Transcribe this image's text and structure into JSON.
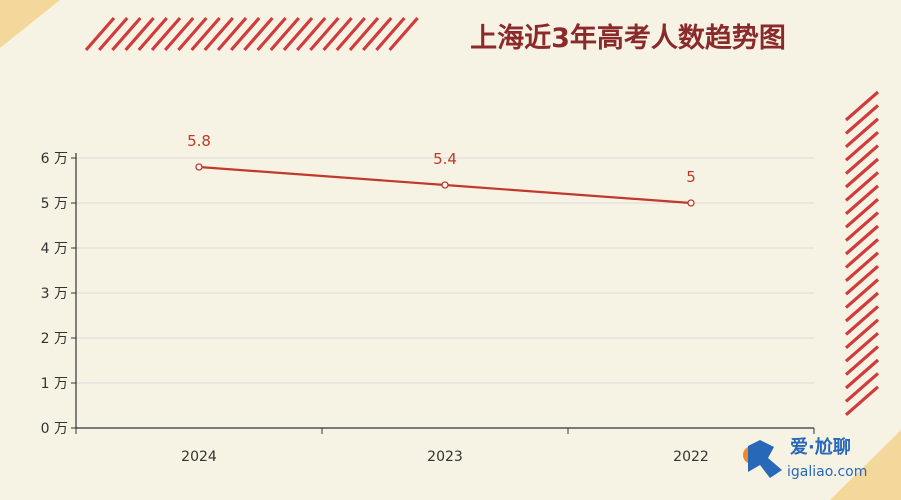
{
  "colors": {
    "background": "#f7f3e4",
    "accent": "#d23b3b",
    "series": "#c0392b",
    "title": "#8b2a2a",
    "corner": "#f4d79a",
    "grid": "#d9d9d9",
    "watermark_blue": "#2868b8",
    "watermark_orange": "#f08a24"
  },
  "watermark": {
    "brand": "爱·尬聊",
    "url": "igaliao.com"
  },
  "chart_data": {
    "type": "line",
    "title": "上海近3年高考人数趋势图",
    "categories": [
      "2024",
      "2023",
      "2022"
    ],
    "series": [
      {
        "values": [
          5.8,
          5.4,
          5
        ]
      }
    ],
    "data_labels": [
      "5.8",
      "5.4",
      "5"
    ],
    "y_ticks": [
      0,
      1,
      2,
      3,
      4,
      5,
      6
    ],
    "y_tick_labels": [
      "0 万",
      "1 万",
      "2 万",
      "3 万",
      "4 万",
      "5 万",
      "6 万"
    ],
    "ylim": [
      0,
      6
    ],
    "xlabel": "",
    "ylabel": "",
    "grid": true,
    "legend": "none"
  }
}
